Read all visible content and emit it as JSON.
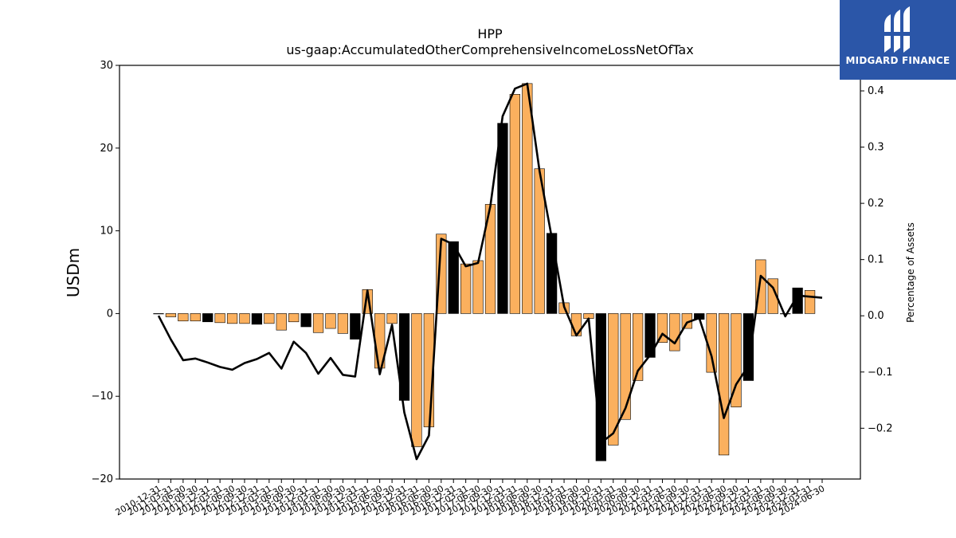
{
  "logo": {
    "text": "MIDGARD FINANCE",
    "bg_color": "#2b56a8",
    "icon": "midgard-logo-icon"
  },
  "chart_data": {
    "type": "bar",
    "title": "HPP",
    "subtitle": "us-gaap:AccumulatedOtherComprehensiveIncomeLossNetOfTax",
    "ylabel": "USDm",
    "y2label": "Percentage of Assets",
    "ylim": [
      -20,
      30
    ],
    "y2lim": [
      -0.2903,
      0.4454
    ],
    "yticks": [
      "−20",
      "−10",
      "0",
      "10",
      "20",
      "30"
    ],
    "y2ticks": [
      "−0.2",
      "−0.1",
      "0.0",
      "0.1",
      "0.2",
      "0.3",
      "0.4"
    ],
    "grid": false,
    "colors": {
      "bar": "#fbb05e",
      "bar_q4": "#000000",
      "line": "#000000"
    },
    "categories": [
      "2010-12-31",
      "2011-03-31",
      "2011-06-30",
      "2011-09-30",
      "2011-12-31",
      "2012-03-31",
      "2012-06-30",
      "2012-09-30",
      "2012-12-31",
      "2013-03-31",
      "2013-06-30",
      "2013-09-30",
      "2013-12-31",
      "2014-03-31",
      "2014-06-30",
      "2014-09-30",
      "2014-12-31",
      "2015-03-31",
      "2015-06-30",
      "2015-09-30",
      "2015-12-31",
      "2016-03-31",
      "2016-06-30",
      "2016-09-30",
      "2016-12-31",
      "2017-03-31",
      "2017-06-30",
      "2017-09-30",
      "2017-12-31",
      "2018-03-31",
      "2018-06-30",
      "2018-09-30",
      "2018-12-31",
      "2019-03-31",
      "2019-06-30",
      "2019-09-30",
      "2019-12-31",
      "2020-03-31",
      "2020-06-30",
      "2020-09-30",
      "2020-12-31",
      "2021-03-31",
      "2021-06-30",
      "2021-09-30",
      "2021-12-31",
      "2022-03-31",
      "2022-06-30",
      "2022-09-30",
      "2022-12-31",
      "2023-03-31",
      "2023-06-30",
      "2023-09-30",
      "2023-12-31",
      "2024-03-31",
      "2024-06-30"
    ],
    "series": [
      {
        "kind": "bar",
        "values": [
          0,
          -0.4,
          -0.9,
          -0.9,
          -1.0,
          -1.1,
          -1.2,
          -1.2,
          -1.3,
          -1.2,
          -2.0,
          -1.0,
          -1.6,
          -2.3,
          -1.8,
          -2.4,
          -3.1,
          2.9,
          -6.6,
          -1.2,
          -10.5,
          -16.1,
          -13.7,
          9.6,
          8.7,
          6.0,
          6.4,
          13.2,
          23.0,
          26.5,
          27.8,
          17.5,
          9.7,
          1.3,
          -2.7,
          -0.6,
          -17.8,
          -15.9,
          -12.8,
          -8.1,
          -5.3,
          -3.5,
          -4.5,
          -1.8,
          -0.7,
          -7.1,
          -17.1,
          -11.3,
          -8.1,
          6.5,
          4.2,
          0.0,
          3.1,
          2.8,
          null
        ]
      },
      {
        "kind": "line",
        "axis": "right",
        "values": [
          0.0,
          -0.042,
          -0.079,
          -0.076,
          -0.083,
          -0.091,
          -0.096,
          -0.084,
          -0.077,
          -0.066,
          -0.094,
          -0.046,
          -0.066,
          -0.103,
          -0.075,
          -0.105,
          -0.108,
          0.045,
          -0.104,
          -0.016,
          -0.172,
          -0.255,
          -0.213,
          0.137,
          0.127,
          0.088,
          0.094,
          0.195,
          0.355,
          0.404,
          0.413,
          0.258,
          0.139,
          0.016,
          -0.035,
          -0.005,
          -0.226,
          -0.209,
          -0.164,
          -0.098,
          -0.07,
          -0.032,
          -0.049,
          -0.012,
          -0.004,
          -0.072,
          -0.182,
          -0.122,
          -0.089,
          0.071,
          0.05,
          -0.001,
          0.036,
          0.034,
          0.032
        ]
      }
    ]
  }
}
